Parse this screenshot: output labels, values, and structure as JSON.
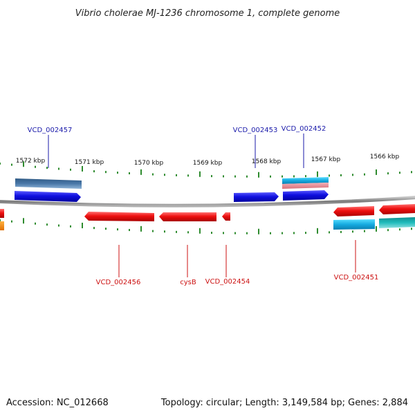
{
  "title": "Vibrio cholerae MJ-1236 chromosome 1, complete genome",
  "accession": "Accession: NC_012668",
  "topology": "Topology: circular; Length: 3,149,584 bp; Genes: 2,884",
  "colors": {
    "forward_gene": "#1010e0",
    "reverse_gene": "#e01010",
    "steel_gene": "#4a78a8",
    "cyan_gene": "#22aadd",
    "pink_gene": "#e8909a",
    "teal_gene": "#1fb5b5",
    "orange_gene": "#ff8c00",
    "backbone": "#888888",
    "tick": "#2e8b2e",
    "forward_label": "#1a1aaa",
    "reverse_label": "#cc1111"
  },
  "kbp_labels": [
    "1572 kbp",
    "1571 kbp",
    "1570 kbp",
    "1569 kbp",
    "1568 kbp",
    "1567 kbp",
    "1566 kbp"
  ],
  "gene_labels": {
    "forward": [
      "VCD_002457",
      "VCD_002453",
      "VCD_002452"
    ],
    "reverse": [
      "VCD_002456",
      "cysB",
      "VCD_002454",
      "VCD_002451"
    ]
  }
}
